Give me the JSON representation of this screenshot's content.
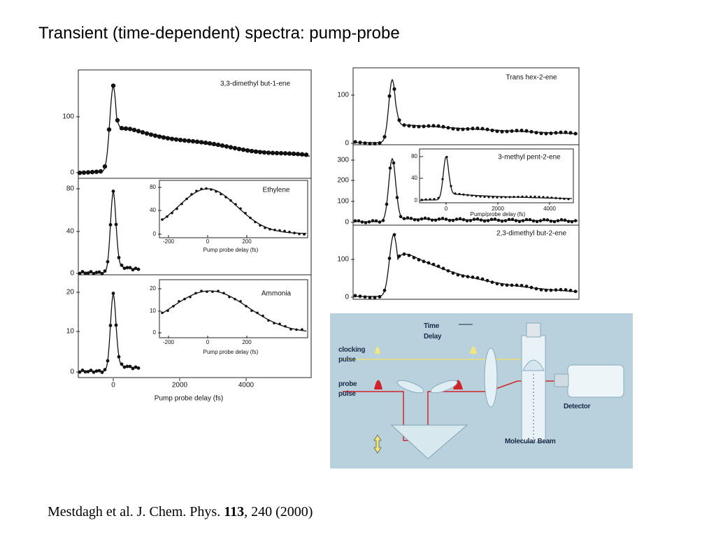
{
  "title": "Transient (time-dependent) spectra: pump-probe",
  "citation": {
    "authors": "Mestdagh et al. J. Chem. Phys. ",
    "volume": "113",
    "rest": ", 240 (2000)"
  },
  "left_figure": {
    "panels": [
      {
        "label": "3,3-dimethyl but-1-ene",
        "yticks": [
          "0",
          "100"
        ]
      },
      {
        "yticks": [
          "0",
          "40",
          "80"
        ],
        "inset": {
          "label": "Ethylene",
          "xticks": [
            "-200",
            "0",
            "200"
          ],
          "yticks": [
            "0",
            "40",
            "80"
          ],
          "xlabel": "Pump probe delay (fs)"
        }
      },
      {
        "yticks": [
          "0",
          "10",
          "20"
        ],
        "inset": {
          "label": "Ammonia",
          "xticks": [
            "-200",
            "0",
            "200"
          ],
          "yticks": [
            "0",
            "10",
            "20"
          ],
          "xlabel": "Pump probe delay (fs)"
        }
      }
    ],
    "xticks": [
      "0",
      "2000",
      "4000"
    ],
    "xlabel": "Pump probe delay (fs)"
  },
  "right_figure": {
    "panels": [
      {
        "label": "Trans hex-2-ene",
        "yticks": [
          "0",
          "100"
        ]
      },
      {
        "yticks": [
          "0",
          "100",
          "200",
          "300"
        ],
        "inset": {
          "label": "3-methyl pent-2-ene",
          "xticks": [
            "0",
            "2000",
            "4000"
          ],
          "yticks": [
            "0",
            "40",
            "80"
          ],
          "xlabel": "Pump/probe delay (fs)"
        }
      },
      {
        "label": "2,3-dimethyl but-2-ene",
        "yticks": [
          "0",
          "100"
        ]
      }
    ]
  },
  "diagram": {
    "time_delay": [
      "Time",
      "Delay"
    ],
    "clocking_pulse": [
      "clocking",
      "pulse"
    ],
    "probe_pulse": [
      "probe",
      "pulse"
    ],
    "detector": "Detector",
    "molecular_beam": "Molecular Beam"
  }
}
